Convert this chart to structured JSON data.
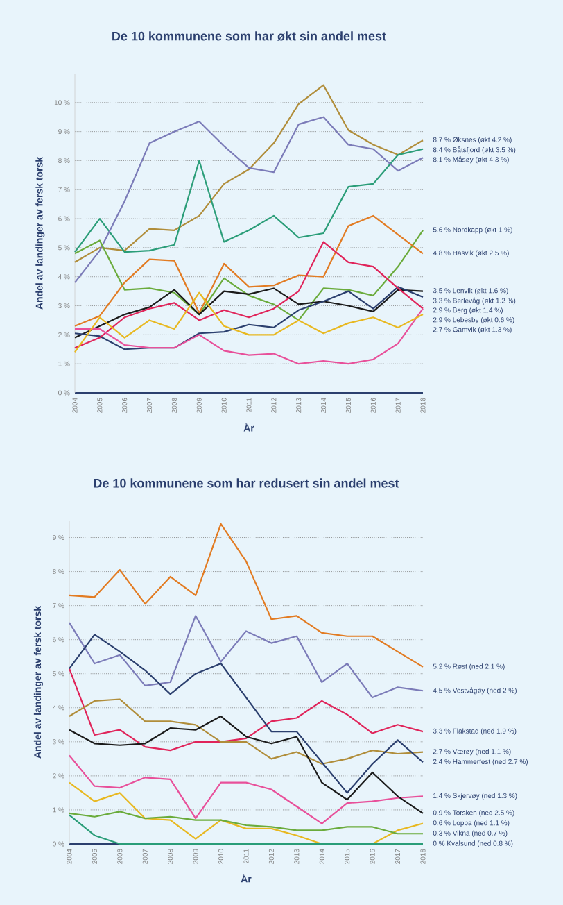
{
  "chart_data": [
    {
      "type": "line",
      "title": "De 10 kommunene som har økt sin andel mest",
      "xlabel": "År",
      "ylabel": "Andel av landinger av fersk torsk",
      "x": [
        2004,
        2005,
        2006,
        2007,
        2008,
        2009,
        2010,
        2011,
        2012,
        2013,
        2014,
        2015,
        2016,
        2017,
        2018
      ],
      "xlim": [
        2004,
        2018
      ],
      "xticks": [
        2004,
        2005,
        2006,
        2007,
        2008,
        2009,
        2010,
        2011,
        2012,
        2013,
        2014,
        2015,
        2016,
        2017,
        2018
      ],
      "ylim": [
        0,
        11
      ],
      "yticks": [
        {
          "value": 0,
          "label": "0 %"
        },
        {
          "value": 1,
          "label": "1 %"
        },
        {
          "value": 2,
          "label": "2 %"
        },
        {
          "value": 3,
          "label": "3 %"
        },
        {
          "value": 4,
          "label": "4 %"
        },
        {
          "value": 5,
          "label": "5 %"
        },
        {
          "value": 6,
          "label": "6 %"
        },
        {
          "value": 7,
          "label": "7 %"
        },
        {
          "value": 8,
          "label": "8 %"
        },
        {
          "value": 9,
          "label": "9 %"
        },
        {
          "value": 10,
          "label": "10 %"
        }
      ],
      "grid": "y",
      "series": [
        {
          "name": "8.7 % Øksnes (økt 4.2 %)",
          "color": "#b08d3a",
          "values": [
            4.5,
            5.0,
            4.9,
            5.65,
            5.6,
            6.1,
            7.2,
            7.7,
            8.6,
            9.95,
            10.6,
            9.05,
            8.55,
            8.2,
            8.7
          ]
        },
        {
          "name": "8.4 % Båtsfjord (økt 3.5 %)",
          "color": "#2a9d78",
          "values": [
            4.85,
            6.0,
            4.85,
            4.9,
            5.1,
            8.0,
            5.2,
            5.6,
            6.1,
            5.35,
            5.5,
            7.1,
            7.2,
            8.2,
            8.4
          ]
        },
        {
          "name": "8.1 % Måsøy (økt 4.3 %)",
          "color": "#7b7bb8",
          "values": [
            3.8,
            4.9,
            6.6,
            8.6,
            9.0,
            9.35,
            8.5,
            7.75,
            7.6,
            9.25,
            9.5,
            8.55,
            8.4,
            7.65,
            8.1
          ]
        },
        {
          "name": "5.6 % Nordkapp (økt 1 %)",
          "color": "#6aab3b",
          "values": [
            4.8,
            5.25,
            3.55,
            3.6,
            3.45,
            2.7,
            3.95,
            3.35,
            3.05,
            2.5,
            3.6,
            3.55,
            3.35,
            4.35,
            5.6
          ]
        },
        {
          "name": "4.8 % Hasvik (økt 2.5 %)",
          "color": "#e27b22",
          "values": [
            2.3,
            2.65,
            3.8,
            4.6,
            4.55,
            2.75,
            4.45,
            3.65,
            3.7,
            4.05,
            4.0,
            5.75,
            6.1,
            5.45,
            4.8
          ]
        },
        {
          "name": "3.5 % Lenvik (økt 1.6 %)",
          "color": "#1a1a1a",
          "values": [
            1.9,
            2.3,
            2.7,
            2.95,
            3.55,
            2.7,
            3.5,
            3.4,
            3.6,
            3.05,
            3.15,
            3.0,
            2.8,
            3.55,
            3.5
          ]
        },
        {
          "name": "3.3 % Berlevåg (økt 1.2 %)",
          "color": "#2b3f6e",
          "values": [
            2.05,
            1.95,
            1.5,
            1.55,
            1.55,
            2.05,
            2.1,
            2.35,
            2.25,
            2.85,
            3.15,
            3.5,
            2.9,
            3.65,
            3.3
          ]
        },
        {
          "name": "2.9 % Berg (økt 1.4 %)",
          "color": "#e0245a",
          "values": [
            1.55,
            1.9,
            2.6,
            2.9,
            3.1,
            2.5,
            2.85,
            2.6,
            2.9,
            3.5,
            5.2,
            4.5,
            4.35,
            3.6,
            2.9
          ]
        },
        {
          "name": "2.9 % Lebesby (økt 0.6 %)",
          "color": "#e8509a",
          "values": [
            2.2,
            2.2,
            1.65,
            1.55,
            1.55,
            2.0,
            1.45,
            1.3,
            1.35,
            1.0,
            1.1,
            1.0,
            1.15,
            1.7,
            2.9
          ]
        },
        {
          "name": "2.7 % Gamvik (økt 1.3 %)",
          "color": "#e8b820",
          "values": [
            1.4,
            2.6,
            1.9,
            2.5,
            2.2,
            3.45,
            2.3,
            2.0,
            2.0,
            2.5,
            2.05,
            2.4,
            2.6,
            2.25,
            2.7
          ]
        }
      ]
    },
    {
      "type": "line",
      "title": "De 10 kommunene som har redusert sin andel mest",
      "xlabel": "År",
      "ylabel": "Andel av landinger av fersk torsk",
      "x": [
        2004,
        2005,
        2006,
        2007,
        2008,
        2009,
        2010,
        2011,
        2012,
        2013,
        2014,
        2015,
        2016,
        2017,
        2018
      ],
      "xlim": [
        2004,
        2018
      ],
      "xticks": [
        2004,
        2005,
        2006,
        2007,
        2008,
        2009,
        2010,
        2011,
        2012,
        2013,
        2014,
        2015,
        2016,
        2017,
        2018
      ],
      "ylim": [
        0,
        9.5
      ],
      "yticks": [
        {
          "value": 0,
          "label": "0 %"
        },
        {
          "value": 1,
          "label": "1 %"
        },
        {
          "value": 2,
          "label": "2 %"
        },
        {
          "value": 3,
          "label": "3 %"
        },
        {
          "value": 4,
          "label": "4 %"
        },
        {
          "value": 5,
          "label": "5 %"
        },
        {
          "value": 6,
          "label": "6 %"
        },
        {
          "value": 7,
          "label": "7 %"
        },
        {
          "value": 8,
          "label": "8 %"
        },
        {
          "value": 9,
          "label": "9 %"
        }
      ],
      "grid": "y",
      "series": [
        {
          "name": "5.2 % Røst (ned 2.1 %)",
          "color": "#e27b22",
          "values": [
            7.3,
            7.25,
            8.05,
            7.05,
            7.85,
            7.3,
            9.4,
            8.3,
            6.6,
            6.7,
            6.2,
            6.1,
            6.1,
            5.65,
            5.2
          ]
        },
        {
          "name": "4.5 % Vestvågøy (ned 2 %)",
          "color": "#7b7bb8",
          "values": [
            6.5,
            5.3,
            5.55,
            4.65,
            4.75,
            6.7,
            5.35,
            6.25,
            5.9,
            6.1,
            4.75,
            5.3,
            4.3,
            4.6,
            4.5
          ]
        },
        {
          "name": "3.3 % Flakstad (ned 1.9 %)",
          "color": "#e0245a",
          "values": [
            5.15,
            3.2,
            3.35,
            2.85,
            2.75,
            3.0,
            3.0,
            3.1,
            3.6,
            3.7,
            4.2,
            3.8,
            3.25,
            3.5,
            3.3
          ]
        },
        {
          "name": "2.7 % Værøy (ned 1.1 %)",
          "color": "#b08d3a",
          "values": [
            3.75,
            4.2,
            4.25,
            3.6,
            3.6,
            3.5,
            3.0,
            3.0,
            2.5,
            2.7,
            2.35,
            2.5,
            2.75,
            2.65,
            2.7
          ]
        },
        {
          "name": "2.4 % Hammerfest (ned 2.7 %)",
          "color": "#2b3f6e",
          "values": [
            5.15,
            6.15,
            5.65,
            5.1,
            4.4,
            5.0,
            5.3,
            4.3,
            3.3,
            3.3,
            2.4,
            1.5,
            2.35,
            3.05,
            2.4
          ]
        },
        {
          "name": "1.4 % Skjervøy (ned 1.3 %)",
          "color": "#e8509a",
          "values": [
            2.6,
            1.7,
            1.65,
            1.95,
            1.9,
            0.75,
            1.8,
            1.8,
            1.6,
            1.1,
            0.6,
            1.2,
            1.25,
            1.35,
            1.4
          ]
        },
        {
          "name": "0.9 % Torsken (ned 2.5 %)",
          "color": "#1a1a1a",
          "values": [
            3.35,
            2.95,
            2.9,
            2.95,
            3.4,
            3.35,
            3.75,
            3.15,
            2.95,
            3.15,
            1.8,
            1.3,
            2.1,
            1.4,
            0.9
          ]
        },
        {
          "name": "0.6 % Loppa (ned 1.1 %)",
          "color": "#e8b820",
          "values": [
            1.8,
            1.25,
            1.5,
            0.75,
            0.7,
            0.15,
            0.7,
            0.45,
            0.45,
            0.25,
            0.0,
            0.0,
            0.0,
            0.4,
            0.6
          ]
        },
        {
          "name": "0.3 % Vikna (ned 0.7 %)",
          "color": "#6aab3b",
          "values": [
            0.9,
            0.8,
            0.95,
            0.75,
            0.8,
            0.7,
            0.7,
            0.55,
            0.5,
            0.4,
            0.4,
            0.5,
            0.5,
            0.3,
            0.3
          ]
        },
        {
          "name": "0 % Kvalsund (ned 0.8 %)",
          "color": "#2a9d78",
          "values": [
            0.85,
            0.25,
            0.0,
            0.0,
            0.0,
            0.0,
            0.0,
            0.0,
            0.0,
            0.0,
            0.0,
            0.0,
            0.0,
            0.0,
            0.0
          ]
        }
      ]
    }
  ]
}
